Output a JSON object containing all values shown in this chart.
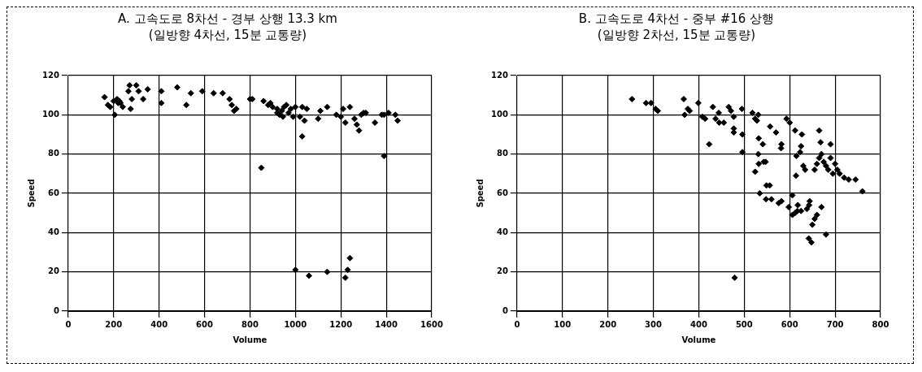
{
  "chart_data": [
    {
      "type": "scatter",
      "title": "A. 고속도로 8차선 - 경부 상행 13.3 km",
      "subtitle": "(일방향 4차선, 15분 교통량)",
      "xlabel": "Volume",
      "ylabel": "Speed",
      "xlim": [
        0,
        1600
      ],
      "ylim": [
        0,
        120
      ],
      "xticks": [
        0,
        200,
        400,
        600,
        800,
        1000,
        1200,
        1400,
        1600
      ],
      "yticks": [
        0,
        20,
        40,
        60,
        80,
        100,
        120
      ],
      "grid": true,
      "marker": "diamond",
      "series": [
        {
          "color": "#000000",
          "x": [
            160,
            175,
            185,
            200,
            205,
            215,
            220,
            225,
            230,
            240,
            265,
            270,
            275,
            280,
            300,
            310,
            330,
            350,
            410,
            410,
            480,
            520,
            540,
            590,
            640,
            680,
            710,
            720,
            730,
            740,
            800,
            810,
            860,
            880,
            890,
            900,
            920,
            920,
            930,
            940,
            945,
            950,
            960,
            970,
            980,
            990,
            1000,
            1020,
            1030,
            1040,
            1050,
            1030,
            1100,
            1110,
            1140,
            1180,
            1200,
            1210,
            1220,
            1240,
            1260,
            1270,
            1280,
            1290,
            1300,
            1310,
            1350,
            1380,
            1390,
            1410,
            1440,
            1450,
            850,
            1390,
            1000,
            1060,
            1140,
            1220,
            1230,
            1240
          ],
          "values": [
            109,
            105,
            104,
            107,
            100,
            108,
            106,
            107,
            106,
            104,
            112,
            115,
            103,
            108,
            115,
            112,
            108,
            113,
            112,
            106,
            114,
            105,
            111,
            112,
            111,
            111,
            108,
            105,
            102,
            103,
            108,
            108,
            107,
            105,
            106,
            104,
            103,
            101,
            100,
            102,
            99,
            104,
            105,
            101,
            103,
            99,
            104,
            99,
            104,
            97,
            103,
            89,
            98,
            102,
            104,
            100,
            99,
            103,
            96,
            104,
            98,
            95,
            92,
            100,
            101,
            101,
            96,
            100,
            100,
            101,
            100,
            97,
            73,
            79,
            21,
            18,
            20,
            17,
            21,
            27
          ]
        }
      ]
    },
    {
      "type": "scatter",
      "title": "B. 고속도로 4차선 - 중부 #16 상행",
      "subtitle": "(일방향 2차선, 15분 교통량)",
      "xlabel": "Volume",
      "ylabel": "Speed",
      "xlim": [
        0,
        800
      ],
      "ylim": [
        0,
        120
      ],
      "xticks": [
        0,
        100,
        200,
        300,
        400,
        500,
        600,
        700,
        800
      ],
      "yticks": [
        0,
        20,
        40,
        60,
        80,
        100,
        120
      ],
      "grid": true,
      "marker": "diamond",
      "series": [
        {
          "color": "#000000",
          "x": [
            253,
            284,
            295,
            305,
            310,
            367,
            369,
            376,
            380,
            399,
            408,
            414,
            431,
            423,
            437,
            444,
            445,
            455,
            466,
            471,
            477,
            477,
            477,
            495,
            496,
            496,
            518,
            524,
            528,
            531,
            557,
            570,
            532,
            541,
            531,
            582,
            581,
            593,
            600,
            612,
            627,
            625,
            623,
            615,
            630,
            634,
            614,
            524,
            532,
            543,
            547,
            534,
            549,
            556,
            548,
            560,
            576,
            582,
            598,
            606,
            606,
            612,
            617,
            618,
            625,
            638,
            643,
            644,
            642,
            479,
            655,
            660,
            665,
            670,
            675,
            680,
            685,
            690,
            690,
            695,
            700,
            705,
            710,
            720,
            730,
            745,
            760,
            650,
            655,
            660,
            670,
            680,
            648,
            665,
            668
          ],
          "values": [
            108,
            106,
            106,
            103,
            102,
            108,
            100,
            103,
            102,
            106,
            99,
            98,
            104,
            85,
            98,
            101,
            96,
            96,
            104,
            102,
            99,
            93,
            91,
            103,
            90,
            81,
            101,
            98,
            97,
            100,
            94,
            91,
            88,
            85,
            80,
            85,
            83,
            98,
            96,
            92,
            90,
            84,
            81,
            79,
            74,
            72,
            69,
            71,
            75,
            76,
            76,
            60,
            64,
            64,
            57,
            57,
            55,
            56,
            53,
            59,
            49,
            50,
            51,
            54,
            51,
            52,
            54,
            56,
            37,
            17,
            72,
            75,
            78,
            80,
            76,
            74,
            72,
            85,
            78,
            70,
            75,
            72,
            70,
            68,
            67,
            67,
            61,
            44,
            47,
            49,
            53,
            39,
            35,
            92,
            86
          ]
        }
      ]
    }
  ]
}
